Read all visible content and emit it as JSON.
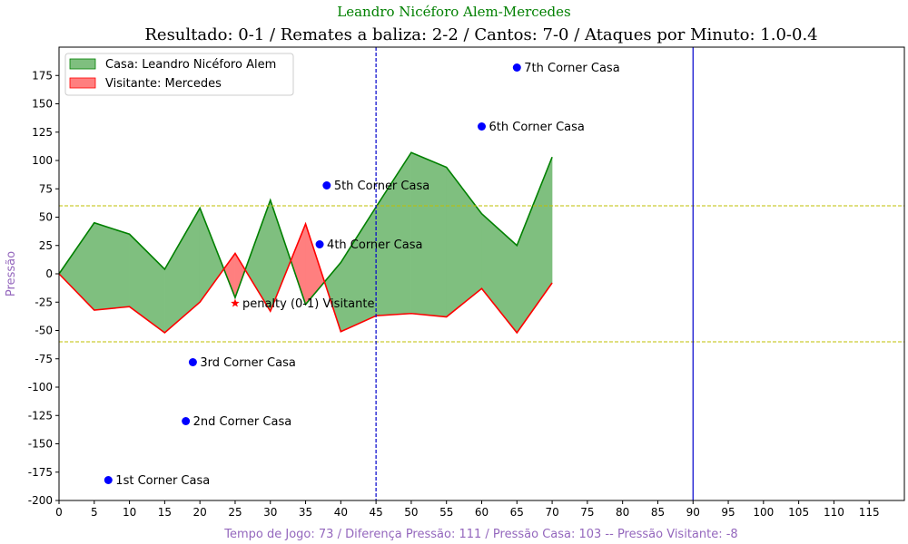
{
  "chart_data": {
    "type": "area",
    "suptitle": "Leandro Nicéforo Alem-Mercedes",
    "title": "Resultado: 0-1 / Remates a baliza: 2-2 / Cantos: 7-0 / Ataques por Minuto: 1.0-0.4",
    "xlabel": "Tempo de Jogo: 73 / Diferença Pressão: 111 / Pressão Casa: 103 -- Pressão Visitante: -8",
    "ylabel": "Pressão",
    "xlim": [
      0,
      120
    ],
    "ylim": [
      -200,
      200
    ],
    "xticks": [
      0,
      5,
      10,
      15,
      20,
      25,
      30,
      35,
      40,
      45,
      50,
      55,
      60,
      65,
      70,
      75,
      80,
      85,
      90,
      95,
      100,
      105,
      110,
      115
    ],
    "yticks": [
      -200,
      -175,
      -150,
      -125,
      -100,
      -75,
      -50,
      -25,
      0,
      25,
      50,
      75,
      100,
      125,
      150,
      175
    ],
    "x": [
      0,
      5,
      10,
      15,
      20,
      25,
      30,
      35,
      40,
      45,
      50,
      55,
      60,
      65,
      70
    ],
    "series": [
      {
        "name": "Casa: Leandro Nicéforo Alem",
        "color": "#008000",
        "fill": "#7fbf7f",
        "values": [
          0,
          45,
          35,
          4,
          58,
          -21,
          65,
          -27,
          10,
          59,
          107,
          94,
          53,
          25,
          103
        ]
      },
      {
        "name": "Visitante: Mercedes",
        "color": "#ff0000",
        "fill": "#ff7f7f",
        "values": [
          0,
          -32,
          -29,
          -52,
          -25,
          18,
          -33,
          44,
          -51,
          -37,
          -35,
          -38,
          -13,
          -52,
          -8
        ]
      }
    ],
    "hlines": [
      {
        "y": 60,
        "color": "#bfbf00",
        "style": "dashed"
      },
      {
        "y": -60,
        "color": "#bfbf00",
        "style": "dashed"
      }
    ],
    "vlines": [
      {
        "x": 45,
        "color": "#0000cc",
        "style": "dashed"
      },
      {
        "x": 90,
        "color": "#0000cc",
        "style": "solid"
      }
    ],
    "annotations": [
      {
        "x": 7,
        "y": -182,
        "text": "1st Corner Casa",
        "marker": "dot",
        "color": "#0000ff"
      },
      {
        "x": 18,
        "y": -130,
        "text": "2nd Corner Casa",
        "marker": "dot",
        "color": "#0000ff"
      },
      {
        "x": 19,
        "y": -78,
        "text": "3rd Corner Casa",
        "marker": "dot",
        "color": "#0000ff"
      },
      {
        "x": 25,
        "y": -26,
        "text": "penalty (0-1) Visitante",
        "marker": "star",
        "color": "#ff0000"
      },
      {
        "x": 37,
        "y": 26,
        "text": "4th Corner Casa",
        "marker": "dot",
        "color": "#0000ff"
      },
      {
        "x": 38,
        "y": 78,
        "text": "5th Corner Casa",
        "marker": "dot",
        "color": "#0000ff"
      },
      {
        "x": 60,
        "y": 130,
        "text": "6th Corner Casa",
        "marker": "dot",
        "color": "#0000ff"
      },
      {
        "x": 65,
        "y": 182,
        "text": "7th Corner Casa",
        "marker": "dot",
        "color": "#0000ff"
      }
    ],
    "legend": "top-left",
    "grid": false,
    "colors": {
      "suptitle": "#008000",
      "labels": "#9467bd"
    }
  }
}
